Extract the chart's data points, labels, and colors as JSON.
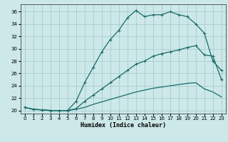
{
  "title": "",
  "xlabel": "Humidex (Indice chaleur)",
  "ylabel": "",
  "xlim": [
    -0.5,
    23.5
  ],
  "ylim": [
    19.5,
    37.2
  ],
  "xticks": [
    0,
    1,
    2,
    3,
    4,
    5,
    6,
    7,
    8,
    9,
    10,
    11,
    12,
    13,
    14,
    15,
    16,
    17,
    18,
    19,
    20,
    21,
    22,
    23
  ],
  "yticks": [
    20,
    22,
    24,
    26,
    28,
    30,
    32,
    34,
    36
  ],
  "bg_color": "#cce8e8",
  "line_color": "#1a6b6b",
  "grid_color": "#aacccc",
  "line1_x": [
    0,
    1,
    2,
    3,
    4,
    5,
    6,
    7,
    8,
    9,
    10,
    11,
    12,
    13,
    14,
    15,
    16,
    17,
    18,
    19,
    20,
    21,
    22,
    23
  ],
  "line1_y": [
    20.5,
    20.2,
    20.1,
    20.0,
    20.0,
    20.0,
    21.5,
    24.5,
    27.0,
    29.5,
    31.5,
    33.0,
    35.0,
    36.2,
    35.2,
    35.5,
    35.5,
    36.0,
    35.5,
    35.2,
    34.0,
    32.5,
    28.0,
    26.5
  ],
  "line2_x": [
    0,
    1,
    2,
    3,
    4,
    5,
    6,
    7,
    8,
    9,
    10,
    11,
    12,
    13,
    14,
    15,
    16,
    17,
    18,
    19,
    20,
    21,
    22,
    23
  ],
  "line2_y": [
    20.5,
    20.2,
    20.1,
    20.0,
    20.0,
    20.0,
    20.3,
    21.5,
    22.5,
    23.5,
    24.5,
    25.5,
    26.5,
    27.5,
    28.0,
    28.8,
    29.2,
    29.5,
    29.8,
    30.2,
    30.5,
    29.0,
    28.8,
    25.0
  ],
  "line3_x": [
    0,
    1,
    2,
    3,
    4,
    5,
    6,
    7,
    8,
    9,
    10,
    11,
    12,
    13,
    14,
    15,
    16,
    17,
    18,
    19,
    20,
    21,
    22,
    23
  ],
  "line3_y": [
    20.5,
    20.2,
    20.1,
    20.0,
    20.0,
    20.0,
    20.2,
    20.5,
    21.0,
    21.4,
    21.8,
    22.2,
    22.6,
    23.0,
    23.3,
    23.6,
    23.8,
    24.0,
    24.2,
    24.4,
    24.5,
    23.5,
    23.0,
    22.2
  ]
}
